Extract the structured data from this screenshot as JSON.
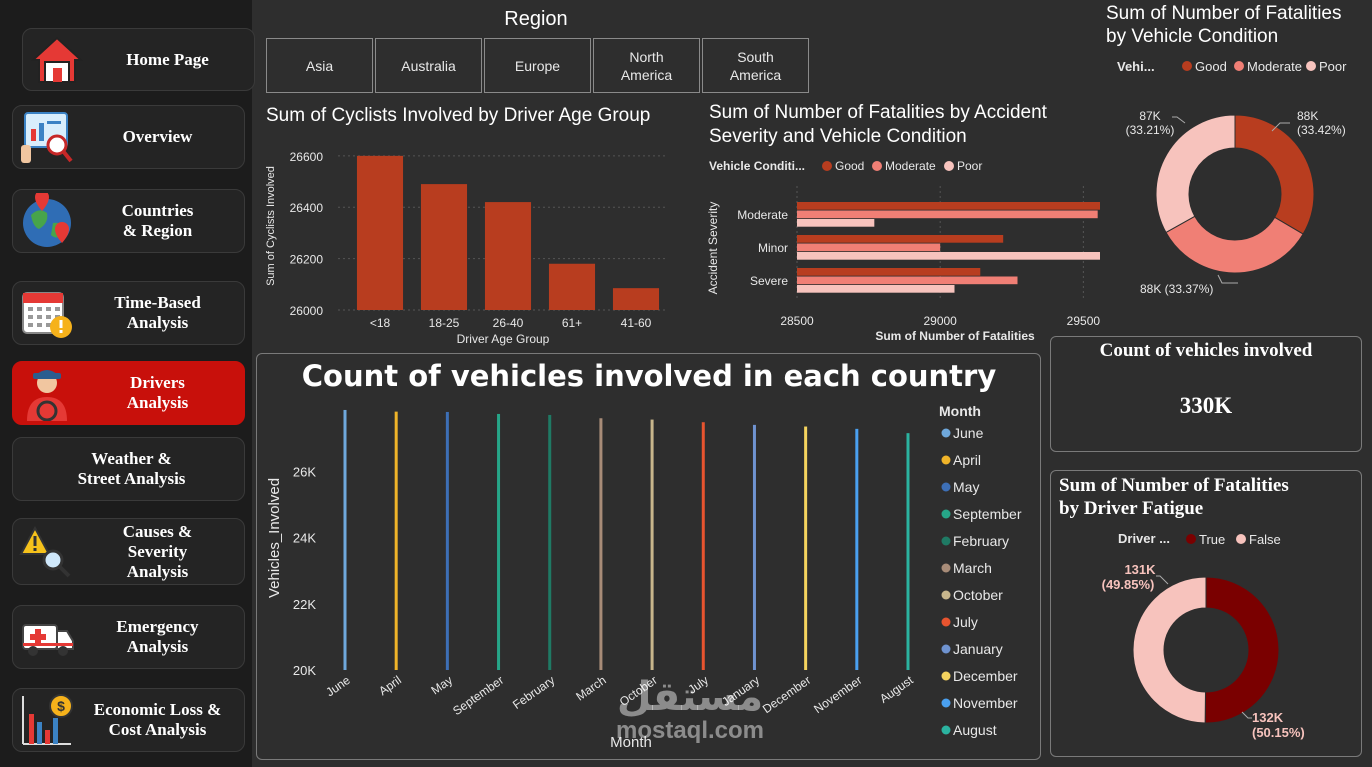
{
  "sidebar": {
    "items": [
      {
        "label_lines": [
          "Home Page"
        ],
        "icon": "house-icon",
        "active": false
      },
      {
        "label_lines": [
          "Overview"
        ],
        "icon": "report-magnifier-icon",
        "active": false
      },
      {
        "label_lines": [
          "Countries",
          "& Region"
        ],
        "icon": "globe-pin-icon",
        "active": false
      },
      {
        "label_lines": [
          "Time-Based",
          "Analysis"
        ],
        "icon": "calendar-alert-icon",
        "active": false
      },
      {
        "label_lines": [
          "Drivers",
          "Analysis"
        ],
        "icon": "driver-icon",
        "active": true
      },
      {
        "label_lines": [
          "Weather &",
          "Street Analysis"
        ],
        "icon": "",
        "active": false
      },
      {
        "label_lines": [
          "Causes &",
          "Severity",
          "Analysis"
        ],
        "icon": "warning-search-icon",
        "active": false
      },
      {
        "label_lines": [
          "Emergency",
          "Analysis"
        ],
        "icon": "ambulance-icon",
        "active": false
      },
      {
        "label_lines": [
          "Economic Loss &",
          "Cost Analysis"
        ],
        "icon": "money-chart-icon",
        "active": false
      }
    ]
  },
  "region": {
    "title": "Region",
    "options": [
      [
        "Asia"
      ],
      [
        "Australia"
      ],
      [
        "Europe"
      ],
      [
        "North",
        "America"
      ],
      [
        "South",
        "America"
      ]
    ]
  },
  "colors": {
    "bar": "#b83d1f",
    "good": "#b83d1f",
    "moderate": "#f07f75",
    "poor": "#f7c3bd",
    "fatigue_true": "#7a0000",
    "fatigue_false": "#f7c3bd",
    "active_nav": "#c8100b"
  },
  "age_chart": {
    "title": "Sum of Cyclists Involved by Driver Age Group",
    "xlabel": "Driver Age Group",
    "ylabel": "Sum of Cyclists Involved",
    "ticks": [
      "26600",
      "26400",
      "26200",
      "26000"
    ]
  },
  "severity_chart": {
    "title_lines": [
      "Sum of Number of Fatalities by Accident",
      "Severity and Vehicle Condition"
    ],
    "legend_title": "Vehicle Conditi...",
    "legend_items": [
      "Good",
      "Moderate",
      "Poor"
    ],
    "xlabel": "Sum of Number of Fatalities",
    "ylabel": "Accident Severity",
    "ticks": [
      "28500",
      "29000",
      "29500"
    ]
  },
  "condition_donut": {
    "title_lines": [
      "Sum of Number of Fatalities",
      "by Vehicle Condition"
    ],
    "legend_title": "Vehi...",
    "legend_items": [
      "Good",
      "Moderate",
      "Poor"
    ],
    "labels": [
      {
        "value": "88K",
        "pct": "(33.42%)"
      },
      {
        "value": "88K (33.37%)",
        "pct": ""
      },
      {
        "value": "87K",
        "pct": "(33.21%)"
      }
    ]
  },
  "country_chart": {
    "title": "Count of vehicles involved in each country",
    "xlabel": "Month",
    "ylabel": "Vehicles_Involved",
    "ticks": [
      "26K",
      "24K",
      "22K",
      "20K"
    ],
    "legend_title": "Month"
  },
  "kpi": {
    "title": "Count of vehicles involved",
    "value": "330K"
  },
  "fatigue_donut": {
    "title_lines": [
      "Sum of Number of Fatalities",
      "by Driver Fatigue"
    ],
    "legend_title": "Driver ...",
    "legend_items": [
      "True",
      "False"
    ],
    "labels": [
      {
        "value": "131K",
        "pct": "(49.85%)"
      },
      {
        "value": "132K",
        "pct": "(50.15%)"
      }
    ]
  },
  "watermark": {
    "arabic": "مستقل",
    "latin": "mostaql.com"
  },
  "chart_data": [
    {
      "type": "bar",
      "title": "Sum of Cyclists Involved by Driver Age Group",
      "xlabel": "Driver Age Group",
      "ylabel": "Sum of Cyclists Involved",
      "categories": [
        "<18",
        "18-25",
        "26-40",
        "61+",
        "41-60"
      ],
      "values": [
        26600,
        26490,
        26420,
        26180,
        26085
      ],
      "ylim": [
        26000,
        26650
      ],
      "grid": true
    },
    {
      "type": "bar",
      "orientation": "horizontal",
      "title": "Sum of Number of Fatalities by Accident Severity and Vehicle Condition",
      "xlabel": "Sum of Number of Fatalities",
      "ylabel": "Accident Severity",
      "categories": [
        "Moderate",
        "Minor",
        "Severe"
      ],
      "series": [
        {
          "name": "Good",
          "values": [
            29570,
            29220,
            29140
          ]
        },
        {
          "name": "Moderate",
          "values": [
            29550,
            29000,
            29270
          ]
        },
        {
          "name": "Poor",
          "values": [
            28770,
            29570,
            29050
          ]
        }
      ],
      "xlim": [
        28500,
        29600
      ]
    },
    {
      "type": "pie",
      "title": "Sum of Number of Fatalities by Vehicle Condition",
      "categories": [
        "Good",
        "Moderate",
        "Poor"
      ],
      "values": [
        88000,
        88000,
        87000
      ],
      "percents": [
        33.42,
        33.37,
        33.21
      ]
    },
    {
      "type": "bar",
      "title": "Count of vehicles involved in each country",
      "xlabel": "Month",
      "ylabel": "Vehicles_Involved",
      "categories": [
        "June",
        "April",
        "May",
        "September",
        "February",
        "March",
        "October",
        "July",
        "January",
        "December",
        "November",
        "August"
      ],
      "values": [
        27850,
        27800,
        27790,
        27730,
        27700,
        27600,
        27560,
        27480,
        27400,
        27350,
        27280,
        27150
      ],
      "series_colors": [
        "#6fa8dc",
        "#f0b429",
        "#3d6fb6",
        "#26a688",
        "#1f7a64",
        "#a88c78",
        "#c8b68c",
        "#e8542f",
        "#6f93d0",
        "#f4d35e",
        "#4aa0f0",
        "#2bb3a0"
      ],
      "ylim": [
        20000,
        28000
      ]
    },
    {
      "type": "pie",
      "title": "Sum of Number of Fatalities by Driver Fatigue",
      "categories": [
        "True",
        "False"
      ],
      "values": [
        132000,
        131000
      ],
      "percents": [
        50.15,
        49.85
      ]
    }
  ]
}
